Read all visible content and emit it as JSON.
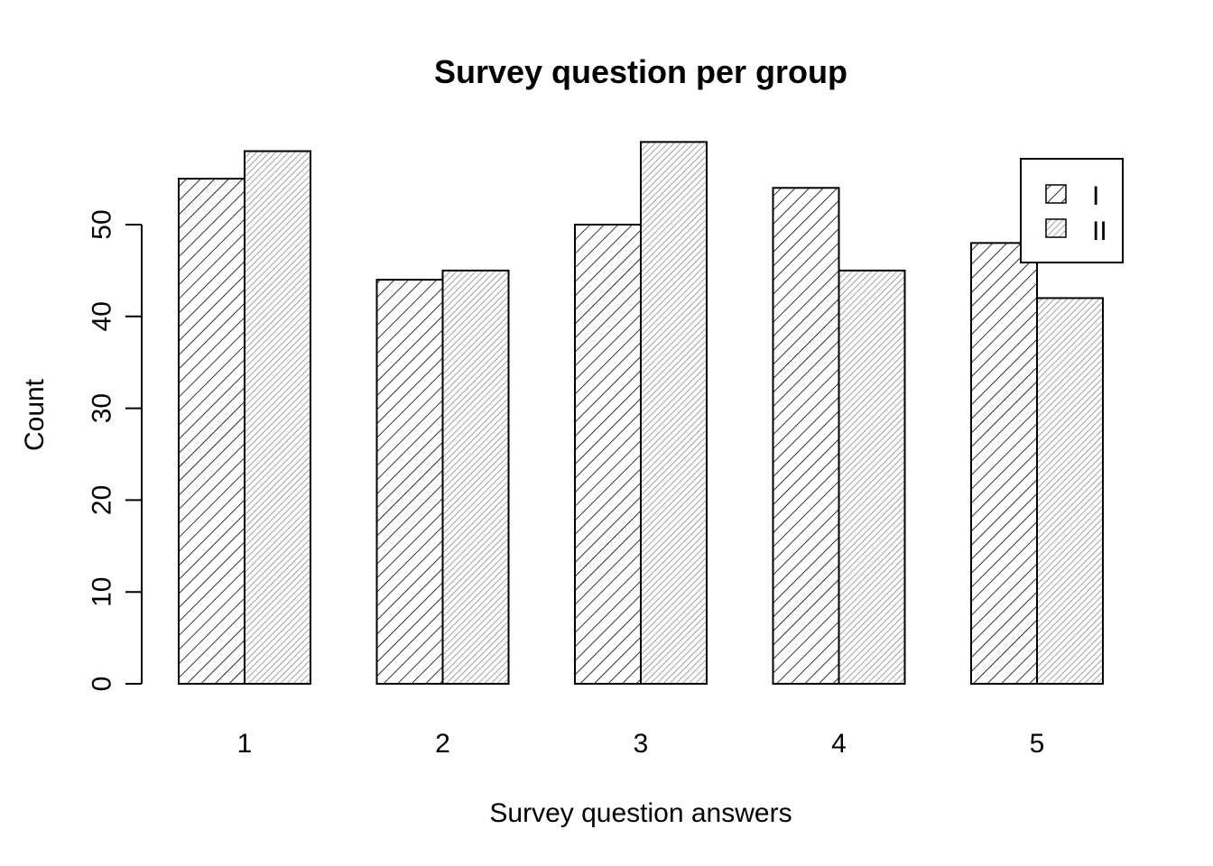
{
  "chart_data": {
    "type": "bar",
    "title": "Survey question per group",
    "xlabel": "Survey question answers",
    "ylabel": "Count",
    "categories": [
      "1",
      "2",
      "3",
      "4",
      "5"
    ],
    "series": [
      {
        "name": "I",
        "values": [
          55,
          44,
          50,
          54,
          48
        ],
        "fill": "hatch-black",
        "color": "#000000"
      },
      {
        "name": "II",
        "values": [
          58,
          45,
          59,
          45,
          42
        ],
        "fill": "hatch-gray",
        "color": "#8c8c8c"
      }
    ],
    "ylim": [
      0,
      59
    ],
    "yticks": [
      "0",
      "10",
      "20",
      "30",
      "40",
      "50"
    ],
    "grid": false,
    "legend": {
      "position": "top-right",
      "entries": [
        "I",
        "II"
      ]
    }
  }
}
